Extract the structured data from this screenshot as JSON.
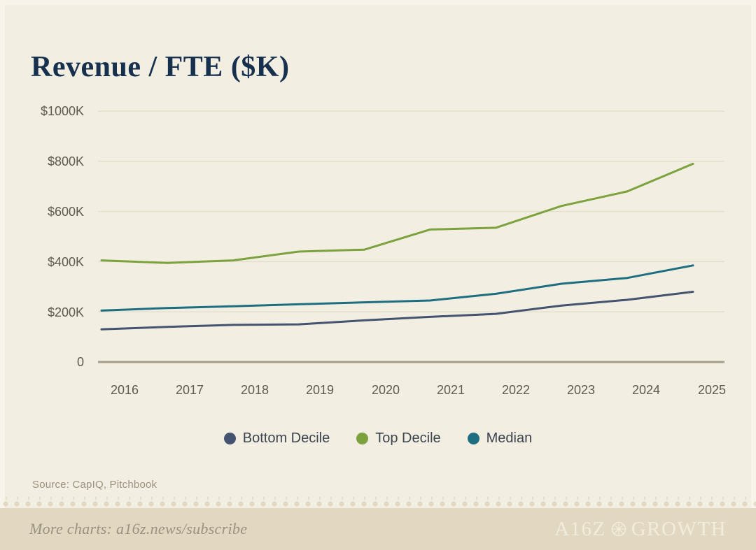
{
  "page": {
    "title": "Revenue / FTE ($K)",
    "source_note": "Source: CapIQ, Pitchbook"
  },
  "footer": {
    "more_charts_text": "More charts: a16z.news/subscribe",
    "brand_prefix": "A16Z",
    "brand_suffix": "GROWTH",
    "emblem_icon": "compass-circle-icon"
  },
  "colors": {
    "background": "#f3eee2",
    "footer_background": "#e2d8c2",
    "title_text": "#16304e",
    "grid_line": "#e4decd",
    "axis_line": "#a79e8b",
    "tick_text": "#5e5a50"
  },
  "chart_data": {
    "type": "line",
    "title": "Revenue / FTE ($K)",
    "x_labels": [
      "2016",
      "2017",
      "2018",
      "2019",
      "2020",
      "2021",
      "2022",
      "2023",
      "2024",
      "2025"
    ],
    "ylim": [
      0,
      1000
    ],
    "ytick_values": [
      1000,
      800,
      600,
      400,
      200,
      0
    ],
    "ytick_labels": [
      "$1000K",
      "$800K",
      "$600K",
      "$400K",
      "$200K",
      "0"
    ],
    "grid": true,
    "legend_position": "bottom",
    "series": [
      {
        "name": "Bottom Decile",
        "color": "#44536f",
        "values": [
          130,
          140,
          148,
          150,
          166,
          180,
          192,
          225,
          248,
          280
        ]
      },
      {
        "name": "Top Decile",
        "color": "#7ca23e",
        "values": [
          405,
          395,
          405,
          440,
          448,
          528,
          535,
          622,
          680,
          790
        ]
      },
      {
        "name": "Median",
        "color": "#1e6e82",
        "values": [
          205,
          215,
          222,
          230,
          238,
          245,
          272,
          312,
          335,
          385
        ]
      }
    ]
  }
}
